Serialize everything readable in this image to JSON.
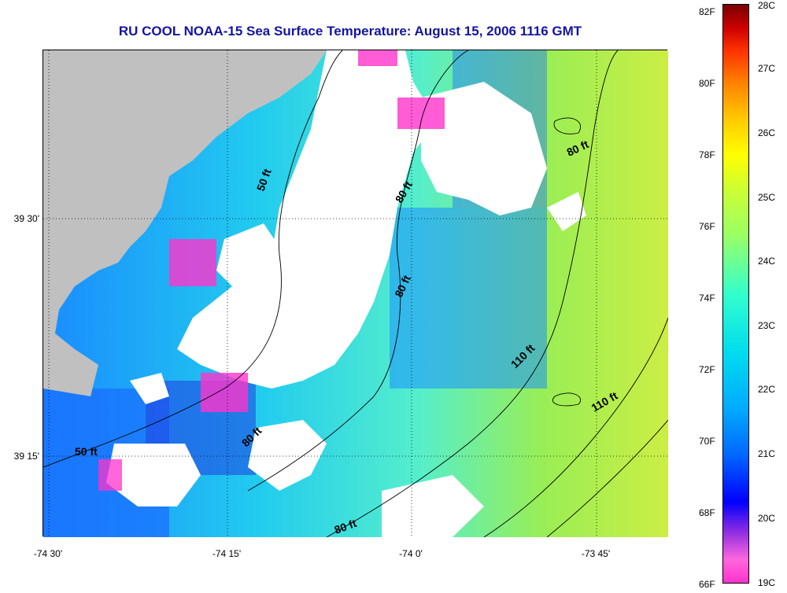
{
  "title": "RU COOL  NOAA-15  Sea Surface Temperature:  August 15, 2006 1116 GMT",
  "axes": {
    "y_ticks": [
      "39 30'",
      "39 15'"
    ],
    "x_ticks": [
      "-74 30'",
      "-74 15'",
      "-74 0'",
      "-73 45'"
    ]
  },
  "contours": [
    "50 ft",
    "50 ft",
    "80 ft",
    "80 ft",
    "80 ft",
    "80 ft",
    "80 ft",
    "110 ft",
    "110 ft"
  ],
  "colorbar": {
    "f_labels": [
      "82F",
      "80F",
      "78F",
      "76F",
      "74F",
      "72F",
      "70F",
      "68F",
      "66F"
    ],
    "c_labels": [
      "28C",
      "27C",
      "26C",
      "25C",
      "24C",
      "23C",
      "22C",
      "21C",
      "20C",
      "19C"
    ],
    "colors": [
      "#ff33cc",
      "#8a2be2",
      "#0000ff",
      "#00aaff",
      "#00ffff",
      "#66ffaa",
      "#ccff33",
      "#ffff00",
      "#ffaa00",
      "#ff3300",
      "#aa0000",
      "#7a0000"
    ]
  },
  "legend_colors": {
    "land": "#c0c0c0",
    "no_data": "#ffffff"
  }
}
